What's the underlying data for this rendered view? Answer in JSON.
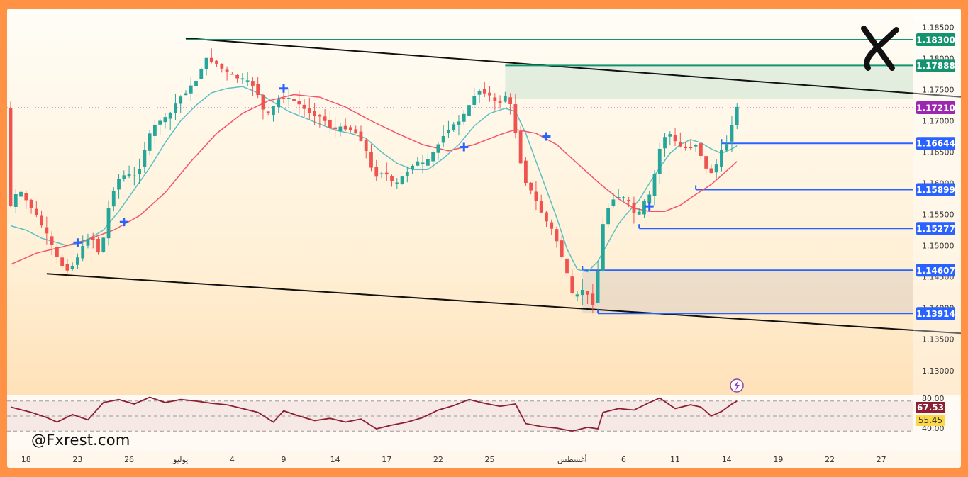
{
  "watermark": "@Fxrest.com",
  "colors": {
    "bull": "#26a69a",
    "bear": "#ef5350",
    "ma_fast": "#5bc0c6",
    "ma_slow": "#f2546b",
    "channel": "#111111",
    "blue_level": "#2962ff",
    "green_level": "#14936f",
    "current_price": "#9c27b0",
    "rsi": "#8b1f34",
    "rsi_label_bg": "#8b1f34",
    "rsi_ma_label_bg": "#fbd84a",
    "signal_marker": "#2962ff"
  },
  "chart_data": {
    "type": "candlestick",
    "instrument_hint": "EURUSD daily",
    "price_axis": {
      "min": 1.126,
      "max": 1.188,
      "ticks": [
        "1.13000",
        "1.13500",
        "1.14000",
        "1.14500",
        "1.15000",
        "1.15500",
        "1.16000",
        "1.16500",
        "1.17000",
        "1.17500",
        "1.18000",
        "1.18500"
      ]
    },
    "x_axis": {
      "ticks": [
        {
          "label": "18",
          "index": 3
        },
        {
          "label": "23",
          "index": 13
        },
        {
          "label": "26",
          "index": 23
        },
        {
          "label": "يوليو",
          "index": 33
        },
        {
          "label": "4",
          "index": 43
        },
        {
          "label": "9",
          "index": 53
        },
        {
          "label": "14",
          "index": 63
        },
        {
          "label": "17",
          "index": 73
        },
        {
          "label": "22",
          "index": 83
        },
        {
          "label": "25",
          "index": 93
        },
        {
          "label": "أغسطس",
          "index": 109
        },
        {
          "label": "6",
          "index": 119
        },
        {
          "label": "11",
          "index": 129
        },
        {
          "label": "14",
          "index": 139
        },
        {
          "label": "19",
          "index": 149
        },
        {
          "label": "22",
          "index": 159
        },
        {
          "label": "27",
          "index": 169
        }
      ],
      "last_candle_index": 141
    },
    "price_path": [
      [
        0,
        1.1555
      ],
      [
        2,
        1.159
      ],
      [
        5,
        1.1555
      ],
      [
        8,
        1.151
      ],
      [
        10,
        1.147
      ],
      [
        12,
        1.146
      ],
      [
        14,
        1.149
      ],
      [
        16,
        1.152
      ],
      [
        18,
        1.148
      ],
      [
        19,
        1.1545
      ],
      [
        21,
        1.1605
      ],
      [
        23,
        1.1615
      ],
      [
        25,
        1.161
      ],
      [
        27,
        1.167
      ],
      [
        29,
        1.17
      ],
      [
        31,
        1.1705
      ],
      [
        33,
        1.1735
      ],
      [
        35,
        1.175
      ],
      [
        37,
        1.177
      ],
      [
        38,
        1.18
      ],
      [
        40,
        1.1795
      ],
      [
        42,
        1.178
      ],
      [
        44,
        1.177
      ],
      [
        46,
        1.1765
      ],
      [
        48,
        1.1755
      ],
      [
        50,
        1.1705
      ],
      [
        53,
        1.174
      ],
      [
        56,
        1.173
      ],
      [
        58,
        1.1715
      ],
      [
        61,
        1.1705
      ],
      [
        63,
        1.1685
      ],
      [
        65,
        1.169
      ],
      [
        67,
        1.1685
      ],
      [
        69,
        1.1665
      ],
      [
        71,
        1.161
      ],
      [
        73,
        1.162
      ],
      [
        75,
        1.1595
      ],
      [
        77,
        1.1615
      ],
      [
        79,
        1.1635
      ],
      [
        81,
        1.163
      ],
      [
        83,
        1.1655
      ],
      [
        85,
        1.1685
      ],
      [
        87,
        1.1695
      ],
      [
        89,
        1.1715
      ],
      [
        91,
        1.175
      ],
      [
        93,
        1.1745
      ],
      [
        95,
        1.1725
      ],
      [
        97,
        1.1745
      ],
      [
        98,
        1.1705
      ],
      [
        100,
        1.161
      ],
      [
        102,
        1.158
      ],
      [
        104,
        1.1545
      ],
      [
        106,
        1.152
      ],
      [
        108,
        1.147
      ],
      [
        110,
        1.1405
      ],
      [
        111,
        1.1435
      ],
      [
        113,
        1.1415
      ],
      [
        114,
        1.14
      ],
      [
        115,
        1.152
      ],
      [
        117,
        1.1575
      ],
      [
        119,
        1.158
      ],
      [
        121,
        1.1565
      ],
      [
        122,
        1.154
      ],
      [
        123,
        1.1565
      ],
      [
        125,
        1.1585
      ],
      [
        126,
        1.1645
      ],
      [
        128,
        1.1685
      ],
      [
        130,
        1.166
      ],
      [
        132,
        1.1655
      ],
      [
        134,
        1.1665
      ],
      [
        135,
        1.1625
      ],
      [
        137,
        1.1615
      ],
      [
        138,
        1.1645
      ],
      [
        140,
        1.167
      ],
      [
        141,
        1.1721
      ]
    ],
    "moving_averages": [
      {
        "name": "fast",
        "points": [
          [
            0,
            1.1532
          ],
          [
            3,
            1.1525
          ],
          [
            6,
            1.1512
          ],
          [
            9,
            1.1505
          ],
          [
            11,
            1.15
          ],
          [
            14,
            1.1505
          ],
          [
            18,
            1.1525
          ],
          [
            21,
            1.1555
          ],
          [
            24,
            1.159
          ],
          [
            27,
            1.1625
          ],
          [
            30,
            1.1665
          ],
          [
            33,
            1.17
          ],
          [
            36,
            1.1725
          ],
          [
            39,
            1.1745
          ],
          [
            42,
            1.1752
          ],
          [
            45,
            1.1755
          ],
          [
            48,
            1.1745
          ],
          [
            51,
            1.173
          ],
          [
            54,
            1.1715
          ],
          [
            57,
            1.1705
          ],
          [
            60,
            1.1695
          ],
          [
            63,
            1.1685
          ],
          [
            66,
            1.168
          ],
          [
            69,
            1.1672
          ],
          [
            72,
            1.165
          ],
          [
            75,
            1.1632
          ],
          [
            78,
            1.1622
          ],
          [
            81,
            1.1622
          ],
          [
            84,
            1.164
          ],
          [
            87,
            1.1662
          ],
          [
            90,
            1.1692
          ],
          [
            93,
            1.1712
          ],
          [
            96,
            1.172
          ],
          [
            98,
            1.1715
          ],
          [
            100,
            1.168
          ],
          [
            102,
            1.1635
          ],
          [
            104,
            1.159
          ],
          [
            106,
            1.1545
          ],
          [
            108,
            1.1495
          ],
          [
            110,
            1.1462
          ],
          [
            112,
            1.1458
          ],
          [
            114,
            1.1475
          ],
          [
            116,
            1.1505
          ],
          [
            118,
            1.1535
          ],
          [
            120,
            1.1555
          ],
          [
            122,
            1.1573
          ],
          [
            124,
            1.16
          ],
          [
            126,
            1.1625
          ],
          [
            128,
            1.1648
          ],
          [
            130,
            1.1662
          ],
          [
            132,
            1.167
          ],
          [
            134,
            1.1665
          ],
          [
            136,
            1.1655
          ],
          [
            138,
            1.1648
          ],
          [
            140,
            1.1655
          ],
          [
            141,
            1.166
          ]
        ]
      },
      {
        "name": "slow",
        "points": [
          [
            0,
            1.147
          ],
          [
            5,
            1.1488
          ],
          [
            10,
            1.1498
          ],
          [
            15,
            1.151
          ],
          [
            20,
            1.1525
          ],
          [
            25,
            1.1548
          ],
          [
            30,
            1.1585
          ],
          [
            35,
            1.1635
          ],
          [
            40,
            1.168
          ],
          [
            45,
            1.1712
          ],
          [
            50,
            1.1732
          ],
          [
            55,
            1.1742
          ],
          [
            60,
            1.1738
          ],
          [
            65,
            1.1722
          ],
          [
            70,
            1.17
          ],
          [
            75,
            1.168
          ],
          [
            80,
            1.1662
          ],
          [
            85,
            1.1652
          ],
          [
            90,
            1.1662
          ],
          [
            95,
            1.1678
          ],
          [
            98,
            1.1686
          ],
          [
            102,
            1.168
          ],
          [
            106,
            1.1662
          ],
          [
            110,
            1.1632
          ],
          [
            114,
            1.1602
          ],
          [
            118,
            1.1575
          ],
          [
            121,
            1.156
          ],
          [
            124,
            1.1555
          ],
          [
            127,
            1.1555
          ],
          [
            130,
            1.1565
          ],
          [
            133,
            1.1582
          ],
          [
            136,
            1.1598
          ],
          [
            139,
            1.162
          ],
          [
            141,
            1.1635
          ]
        ]
      }
    ],
    "channel_lines": [
      {
        "name": "upper",
        "from": [
          34,
          1.18325
        ],
        "to": [
          193,
          1.1733
        ]
      },
      {
        "name": "lower",
        "from": [
          7,
          1.1455
        ],
        "to": [
          193,
          1.1355
        ]
      }
    ],
    "levels": [
      {
        "price": 1.183,
        "label": "1.18300",
        "kind": "green",
        "from_index": 34
      },
      {
        "price": 1.17888,
        "label": "1.17888",
        "kind": "green",
        "from_index": 96
      },
      {
        "price": 1.1664,
        "label": "1.16644",
        "kind": "blue",
        "from_index": 138
      },
      {
        "price": 1.15899,
        "label": "1.15899",
        "kind": "blue",
        "from_index": 133
      },
      {
        "price": 1.15277,
        "label": "1.15277",
        "kind": "blue",
        "from_index": 122
      },
      {
        "price": 1.14607,
        "label": "1.14607",
        "kind": "blue",
        "from_index": 111
      },
      {
        "price": 1.13914,
        "label": "1.13914",
        "kind": "blue",
        "from_index": 114
      }
    ],
    "current_price": {
      "price": 1.1721,
      "label": "1.17210"
    },
    "zones": [
      {
        "name": "supply",
        "from_index": 96,
        "top": 1.17888,
        "bottom": 1.1735
      },
      {
        "name": "demand",
        "from_index": 111,
        "top": 1.14607,
        "bottom": 1.13914
      }
    ],
    "signals": [
      {
        "index": 13,
        "price": 1.1505
      },
      {
        "index": 22,
        "price": 1.1538
      },
      {
        "index": 53,
        "price": 1.1752
      },
      {
        "index": 88,
        "price": 1.1658
      },
      {
        "index": 104,
        "price": 1.1675
      },
      {
        "index": 124,
        "price": 1.1563
      }
    ],
    "rsi": {
      "axis_ticks": [
        "80.00",
        "40.00"
      ],
      "overbought": 70,
      "oversold": 30,
      "value": 67.53,
      "value_label": "67.53",
      "ma_value": 55.45,
      "ma_label": "55.45",
      "path": [
        [
          0,
          62
        ],
        [
          4,
          55
        ],
        [
          7,
          48
        ],
        [
          9,
          42
        ],
        [
          12,
          52
        ],
        [
          15,
          45
        ],
        [
          18,
          68
        ],
        [
          21,
          72
        ],
        [
          24,
          66
        ],
        [
          27,
          75
        ],
        [
          30,
          68
        ],
        [
          33,
          72
        ],
        [
          36,
          70
        ],
        [
          39,
          67
        ],
        [
          42,
          65
        ],
        [
          45,
          60
        ],
        [
          48,
          55
        ],
        [
          51,
          42
        ],
        [
          53,
          57
        ],
        [
          56,
          50
        ],
        [
          59,
          44
        ],
        [
          62,
          47
        ],
        [
          65,
          42
        ],
        [
          68,
          46
        ],
        [
          71,
          33
        ],
        [
          74,
          38
        ],
        [
          77,
          42
        ],
        [
          80,
          48
        ],
        [
          83,
          58
        ],
        [
          86,
          64
        ],
        [
          89,
          72
        ],
        [
          92,
          67
        ],
        [
          95,
          63
        ],
        [
          98,
          66
        ],
        [
          100,
          40
        ],
        [
          103,
          36
        ],
        [
          106,
          34
        ],
        [
          109,
          30
        ],
        [
          112,
          35
        ],
        [
          114,
          33
        ],
        [
          115,
          55
        ],
        [
          118,
          60
        ],
        [
          121,
          58
        ],
        [
          124,
          68
        ],
        [
          126,
          74
        ],
        [
          129,
          60
        ],
        [
          132,
          65
        ],
        [
          134,
          62
        ],
        [
          136,
          50
        ],
        [
          138,
          56
        ],
        [
          140,
          66
        ],
        [
          141,
          70
        ]
      ]
    }
  }
}
